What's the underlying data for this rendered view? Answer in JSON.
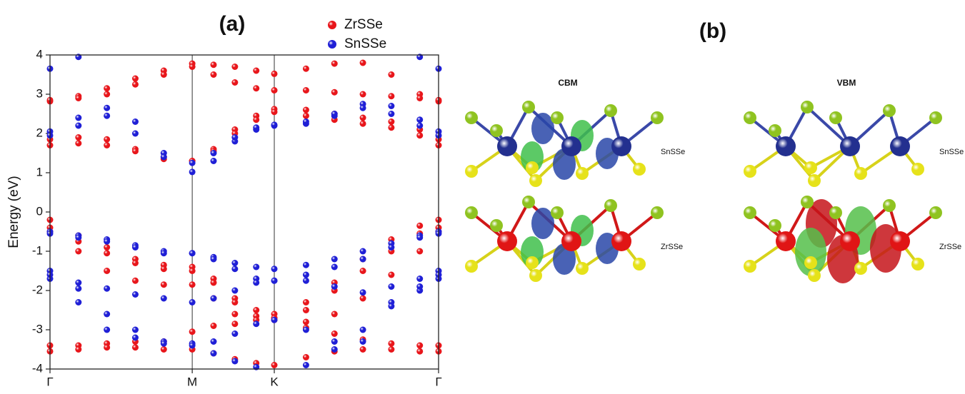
{
  "chart_data": {
    "type": "band-structure",
    "title": "(a)",
    "y_label": "Energy (eV)",
    "x": [
      0,
      0.2,
      0.4,
      0.6,
      0.8,
      1.0,
      1.15,
      1.3,
      1.45,
      1.577,
      1.8,
      2.0,
      2.2,
      2.4,
      2.6,
      2.732
    ],
    "xlim": [
      0,
      2.732
    ],
    "xticks": [
      {
        "value": 0,
        "label": "Γ"
      },
      {
        "value": 1.0,
        "label": "M"
      },
      {
        "value": 1.577,
        "label": "K"
      },
      {
        "value": 2.732,
        "label": "Γ"
      }
    ],
    "ylim": [
      -4,
      4
    ],
    "yticks": [
      -4,
      -3,
      -2,
      -1,
      0,
      1,
      2,
      3,
      4
    ],
    "legend": "top-center",
    "series": [
      {
        "name": "ZrSSe",
        "color": "#e8161b",
        "bands": [
          [
            2.82,
            2.95,
            3.15,
            3.4,
            3.6,
            3.78,
            3.75,
            3.7,
            3.6,
            3.52,
            3.65,
            3.78,
            3.8,
            3.5,
            3.0,
            2.82
          ],
          [
            2.85,
            2.9,
            3.0,
            3.25,
            3.5,
            3.7,
            3.5,
            3.3,
            3.15,
            3.1,
            3.1,
            3.05,
            3.0,
            2.95,
            2.9,
            2.85
          ],
          [
            1.85,
            1.9,
            1.85,
            1.6,
            1.35,
            1.3,
            1.6,
            2.1,
            2.45,
            2.62,
            2.6,
            2.5,
            2.4,
            2.3,
            2.1,
            1.85
          ],
          [
            1.7,
            1.75,
            1.7,
            1.55,
            1.4,
            1.3,
            1.55,
            2.0,
            2.35,
            2.55,
            2.45,
            2.35,
            2.25,
            2.15,
            1.95,
            1.7
          ],
          [
            -0.2,
            -0.6,
            -0.9,
            -1.2,
            -1.35,
            -1.4,
            -1.7,
            -2.2,
            -2.5,
            -2.6,
            -2.3,
            -1.8,
            -1.2,
            -0.7,
            -0.35,
            -0.2
          ],
          [
            -0.4,
            -0.75,
            -1.05,
            -1.3,
            -1.45,
            -1.5,
            -1.8,
            -2.3,
            -2.65,
            -2.75,
            -2.5,
            -2.0,
            -1.5,
            -1.0,
            -0.55,
            -0.4
          ],
          [
            -0.5,
            -1.0,
            -1.5,
            -1.75,
            -1.85,
            -1.85,
            -2.2,
            -2.6,
            -2.75,
            -2.7,
            -2.8,
            -2.6,
            -2.2,
            -1.6,
            -1.0,
            -0.5
          ],
          [
            -3.4,
            -3.4,
            -3.35,
            -3.3,
            -3.3,
            -3.05,
            -2.9,
            -2.85,
            -2.75,
            -2.7,
            -2.95,
            -3.1,
            -3.25,
            -3.35,
            -3.4,
            -3.4
          ],
          [
            -3.55,
            -3.5,
            -3.45,
            -3.45,
            -3.5,
            -3.5,
            -3.6,
            -3.75,
            -3.85,
            -3.9,
            -3.7,
            -3.55,
            -3.5,
            -3.5,
            -3.55,
            -3.55
          ]
        ]
      },
      {
        "name": "SnSSe",
        "color": "#1f1fd6",
        "bands": [
          [
            3.65,
            3.95,
            null,
            null,
            null,
            null,
            null,
            null,
            null,
            null,
            null,
            null,
            null,
            null,
            3.95,
            3.65
          ],
          [
            2.05,
            2.4,
            2.65,
            2.3,
            1.5,
            1.02,
            1.3,
            1.8,
            2.1,
            2.2,
            2.25,
            2.45,
            2.75,
            2.7,
            2.35,
            2.05
          ],
          [
            1.95,
            2.2,
            2.45,
            2.0,
            1.4,
            1.25,
            1.5,
            1.9,
            2.15,
            2.22,
            2.3,
            2.5,
            2.65,
            2.5,
            2.2,
            1.95
          ],
          [
            -0.5,
            -0.6,
            -0.7,
            -0.85,
            -1.0,
            -1.05,
            -1.15,
            -1.3,
            -1.4,
            -1.45,
            -1.35,
            -1.2,
            -1.0,
            -0.8,
            -0.6,
            -0.5
          ],
          [
            -0.55,
            -0.65,
            -0.75,
            -0.9,
            -1.05,
            -1.05,
            -1.2,
            -1.45,
            -1.7,
            -1.75,
            -1.6,
            -1.4,
            -1.2,
            -0.9,
            -0.65,
            -0.55
          ],
          [
            -1.5,
            -1.8,
            -1.95,
            -2.1,
            -2.2,
            -2.3,
            -2.2,
            -2.0,
            -1.8,
            -1.75,
            -1.75,
            -1.9,
            -2.05,
            -1.9,
            -1.7,
            -1.5
          ],
          [
            -1.7,
            -1.95,
            -2.6,
            -3.0,
            -3.3,
            -3.35,
            -3.3,
            -3.1,
            -2.85,
            -2.75,
            -3.0,
            -3.3,
            -3.3,
            -2.3,
            -2.0,
            -1.7
          ],
          [
            -1.6,
            -2.3,
            -3.0,
            -3.2,
            -3.35,
            -3.4,
            -3.6,
            -3.8,
            -3.95,
            null,
            -3.9,
            -3.5,
            -3.0,
            -2.4,
            -1.9,
            -1.6
          ]
        ]
      }
    ]
  },
  "panel_b": {
    "label": "(b)",
    "columns": [
      {
        "title": "CBM",
        "layers": [
          "SnSSe",
          "ZrSSe"
        ]
      },
      {
        "title": "VBM",
        "layers": [
          "SnSSe",
          "ZrSSe"
        ]
      }
    ]
  }
}
